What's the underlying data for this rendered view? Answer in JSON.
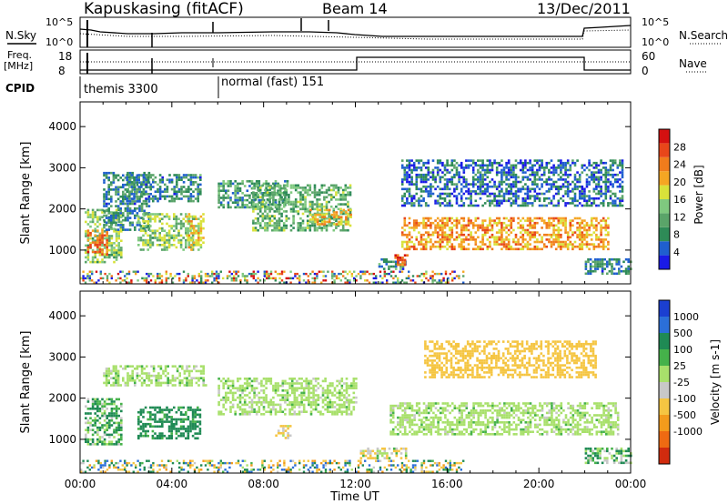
{
  "header": {
    "station": "Kapuskasing (fitACF)",
    "beam": "Beam 14",
    "date": "13/Dec/2011"
  },
  "noise_panel": {
    "left_label": "N.Sky",
    "right_label": "N.Search",
    "ticks_left": [
      "10^5",
      "10^0"
    ],
    "ticks_right": [
      "10^5",
      "10^0"
    ]
  },
  "freq_panel": {
    "left_label_line1": "Freq.",
    "left_label_line2": "[MHz]",
    "right_label": "Nave",
    "ticks_left": [
      "18",
      "8"
    ],
    "ticks_right": [
      "60",
      "0"
    ]
  },
  "cpid": {
    "label": "CPID",
    "modes": [
      {
        "name": "themis 3300",
        "start_hour": 0.2
      },
      {
        "name": "normal (fast) 151",
        "start_hour": 6.0
      }
    ]
  },
  "colors": {
    "power_scale": [
      "#1a1ae6",
      "#1f5fcf",
      "#2e8b57",
      "#5aa469",
      "#7fc97f",
      "#d8e23a",
      "#f5a623",
      "#f07c1c",
      "#e8461a",
      "#d41010"
    ],
    "velocity_scale": [
      "#1b3fd1",
      "#2b6fd9",
      "#1f8a54",
      "#45b24a",
      "#a8e06b",
      "#c8c8c8",
      "#f5c542",
      "#f39b1c",
      "#ee6a12",
      "#d12b0e"
    ]
  },
  "chart_data": [
    {
      "type": "heatmap",
      "name": "power",
      "ylabel": "Slant Range [km]",
      "ylim": [
        180,
        4600
      ],
      "yticks": [
        "1000",
        "2000",
        "3000",
        "4000"
      ],
      "xlim": [
        0,
        24
      ],
      "colorbar_label": "Power [dB]",
      "colorbar_ticks": [
        "4",
        "8",
        "12",
        "16",
        "20",
        "24",
        "28"
      ],
      "colorbar_range": [
        0,
        32
      ],
      "regions": [
        {
          "t0": 0.2,
          "t1": 1.8,
          "r0": 700,
          "r1": 2000,
          "value": 14
        },
        {
          "t0": 0.3,
          "t1": 1.2,
          "r0": 900,
          "r1": 1500,
          "value": 24
        },
        {
          "t0": 1.0,
          "t1": 3.0,
          "r0": 1500,
          "r1": 2900,
          "value": 8
        },
        {
          "t0": 2.0,
          "t1": 5.2,
          "r0": 2200,
          "r1": 2850,
          "value": 8
        },
        {
          "t0": 2.5,
          "t1": 5.0,
          "r0": 1000,
          "r1": 1900,
          "value": 14
        },
        {
          "t0": 4.6,
          "t1": 5.4,
          "r0": 1000,
          "r1": 1900,
          "value": 18
        },
        {
          "t0": 6.0,
          "t1": 9.0,
          "r0": 2050,
          "r1": 2700,
          "value": 10
        },
        {
          "t0": 7.5,
          "t1": 11.8,
          "r0": 1500,
          "r1": 2600,
          "value": 12
        },
        {
          "t0": 10.0,
          "t1": 11.8,
          "r0": 1600,
          "r1": 2000,
          "value": 20
        },
        {
          "t0": 13.0,
          "t1": 14.2,
          "r0": 550,
          "r1": 800,
          "value": 8
        },
        {
          "t0": 13.7,
          "t1": 14.3,
          "r0": 650,
          "r1": 900,
          "value": 26
        },
        {
          "t0": 14.0,
          "t1": 23.0,
          "r0": 1000,
          "r1": 1800,
          "value": 22
        },
        {
          "t0": 14.0,
          "t1": 23.6,
          "r0": 2100,
          "r1": 3200,
          "value": 6
        },
        {
          "t0": 22.0,
          "t1": 24.0,
          "r0": 400,
          "r1": 800,
          "value": 8
        }
      ]
    },
    {
      "type": "heatmap",
      "name": "velocity",
      "ylabel": "Slant Range [km]",
      "ylim": [
        180,
        4600
      ],
      "yticks": [
        "1000",
        "2000",
        "3000",
        "4000"
      ],
      "xlabel": "Time UT",
      "xticks": [
        "00:00",
        "04:00",
        "08:00",
        "12:00",
        "16:00",
        "20:00",
        "00:00"
      ],
      "xlim": [
        0,
        24
      ],
      "colorbar_label": "Velocity [m s-1]",
      "colorbar_ticks": [
        "1000",
        "500",
        "100",
        "25",
        "-25",
        "-100",
        "-500",
        "-1000"
      ],
      "regions": [
        {
          "t0": 0.2,
          "t1": 1.8,
          "r0": 900,
          "r1": 2000,
          "value": 80
        },
        {
          "t0": 1.0,
          "t1": 5.5,
          "r0": 2300,
          "r1": 2800,
          "value": 0
        },
        {
          "t0": 2.5,
          "t1": 5.2,
          "r0": 1000,
          "r1": 1800,
          "value": 200
        },
        {
          "t0": 6.0,
          "t1": 12.0,
          "r0": 1600,
          "r1": 2500,
          "value": 0
        },
        {
          "t0": 8.5,
          "t1": 9.2,
          "r0": 1050,
          "r1": 1350,
          "value": -150
        },
        {
          "t0": 12.2,
          "t1": 14.2,
          "r0": 550,
          "r1": 800,
          "value": -80
        },
        {
          "t0": 13.5,
          "t1": 23.5,
          "r0": 1100,
          "r1": 1900,
          "value": 0
        },
        {
          "t0": 15.0,
          "t1": 22.5,
          "r0": 2500,
          "r1": 3400,
          "value": -250
        },
        {
          "t0": 22.0,
          "t1": 24.0,
          "r0": 450,
          "r1": 800,
          "value": 60
        }
      ]
    }
  ]
}
